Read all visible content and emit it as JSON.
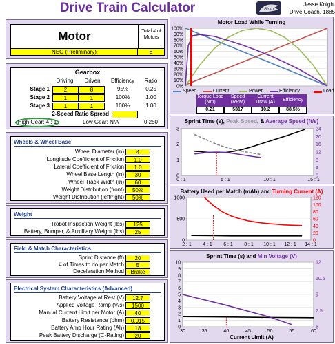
{
  "title": "Drive Train Calculator",
  "author": {
    "name": "Jesse Knight",
    "role": "Drive Coach, 1885"
  },
  "logo": {
    "icon": "team-logo-icon",
    "text": "Bluto"
  },
  "motor": {
    "heading": "Motor",
    "total_label": "Total # of Motors",
    "type": "NEO (Preliminary)",
    "count": "8"
  },
  "gearbox": {
    "heading": "Gearbox",
    "col_driving": "Driving",
    "col_driven": "Driven",
    "col_efficiency": "Efficiency",
    "col_ratio": "Ratio",
    "stages": [
      {
        "label": "Stage 1",
        "driving": "2",
        "driven": "8",
        "efficiency": "95%",
        "ratio": "0.25"
      },
      {
        "label": "Stage 2",
        "driving": "1",
        "driven": "1",
        "efficiency": "100%",
        "ratio": "1.00"
      },
      {
        "label": "Stage 3",
        "driving": "1",
        "driven": "1",
        "efficiency": "100%",
        "ratio": "1.00"
      }
    ],
    "spread_label": "2-Speed Ratio Spread",
    "high_gear": "High Gear:  4 : 1",
    "low_gear": "Low Gear:  N/A",
    "overall": "0.250"
  },
  "wheels": {
    "heading": "Wheels & Wheel Base",
    "rows": [
      {
        "label": "Wheel Diameter (in)",
        "value": "4"
      },
      {
        "label": "Longitude Coefficient of Friction",
        "value": "1.0"
      },
      {
        "label": "Lateral Coefficient of Friction",
        "value": "1.0"
      },
      {
        "label": "Wheel Base Length (in)",
        "value": "30"
      },
      {
        "label": "Wheel Track Width (in)",
        "value": "60"
      },
      {
        "label": "Weight Distribution (front)",
        "value": "50%"
      },
      {
        "label": "Weight Distribution (left/right)",
        "value": "50%"
      }
    ]
  },
  "weight": {
    "heading": "Weight",
    "rows": [
      {
        "label": "Robot Inspection Weight (lbs)",
        "value": "125"
      },
      {
        "label": "Battery, Bumper, & Auxilliary Weight (lbs)",
        "value": "25"
      }
    ]
  },
  "field": {
    "heading": "Field & Match Characteristics",
    "rows": [
      {
        "label": "Sprint Distance (ft)",
        "value": "20"
      },
      {
        "label": "# of Times to do per Match",
        "value": "5"
      },
      {
        "label": "Deceleration Method",
        "value": "Brake"
      }
    ]
  },
  "electrical": {
    "heading": "Electrical System Characteristics (Advanced)",
    "rows": [
      {
        "label": "Battery Voltage at Rest (V)",
        "value": "12.7"
      },
      {
        "label": "Applied Voltage Ramp (V/s)",
        "value": "1500"
      },
      {
        "label": "Manual Current Limit per Motor (A)",
        "value": "40"
      },
      {
        "label": "Battery Resistance (ohm)",
        "value": "0.015"
      },
      {
        "label": "Battery Amp Hour Rating (Ah)",
        "value": "18"
      },
      {
        "label": "Peak Battery Discharge (C-Rating)",
        "value": "20"
      }
    ]
  },
  "motor_load_table": {
    "headers": [
      "Torque Load (Nm)",
      "Speed (RPM)",
      "Current Draw (A)",
      "Efficiency"
    ],
    "values": [
      "0.21",
      "5317",
      "10.2",
      "88.5%"
    ]
  },
  "colors": {
    "title": "#6a2e9e",
    "input": "#ffff00",
    "panel": "#e3d9ef",
    "red": "#ff0000",
    "purple": "#7030a0"
  },
  "chart_data": [
    {
      "type": "line",
      "title": "Motor Load While Turning",
      "xlim": [
        0,
        1
      ],
      "ylim": [
        0,
        100
      ],
      "yticks": [
        "0%",
        "10%",
        "20%",
        "30%",
        "40%",
        "50%",
        "60%",
        "70%",
        "80%",
        "90%",
        "100%"
      ],
      "legend": [
        "Speed",
        "Current",
        "Power",
        "Efficiency",
        "Load"
      ],
      "series": [
        {
          "name": "Speed",
          "color": "#4f81bd",
          "x": [
            0,
            1
          ],
          "y": [
            100,
            0
          ]
        },
        {
          "name": "Current",
          "color": "#c0504d",
          "x": [
            0,
            1
          ],
          "y": [
            2,
            100
          ]
        },
        {
          "name": "Power",
          "color": "#9bbb59",
          "x": [
            0,
            0.1,
            0.2,
            0.3,
            0.4,
            0.5,
            0.6,
            0.7,
            0.8,
            0.9,
            1
          ],
          "y": [
            0,
            36,
            64,
            84,
            96,
            100,
            96,
            84,
            64,
            36,
            0
          ]
        },
        {
          "name": "Efficiency",
          "color": "#7030a0",
          "x": [
            0,
            0.02,
            0.05,
            0.1,
            0.2,
            0.3,
            0.4,
            0.5,
            0.6,
            0.7,
            0.8,
            0.9,
            1
          ],
          "y": [
            0,
            70,
            87,
            89,
            86,
            79,
            71,
            62,
            52,
            41,
            29,
            15,
            0
          ]
        },
        {
          "name": "Load",
          "color": "#ff0000",
          "x": [
            0.04,
            0.04
          ],
          "y": [
            0,
            100
          ]
        }
      ]
    },
    {
      "type": "line",
      "title_parts": [
        "Sprint Time (s), ",
        "Peak Speed",
        ", & ",
        "Average Speed (ft/s)"
      ],
      "xticks": [
        "0 : 1",
        "5 : 1",
        "10 : 1",
        "15 : 1"
      ],
      "xlim": [
        0,
        15
      ],
      "ylim_left": [
        0,
        3
      ],
      "ylim_right": [
        0,
        24
      ],
      "yticks_left": [
        "0",
        "1",
        "2",
        "3"
      ],
      "yticks_right": [
        "0",
        "4",
        "8",
        "12",
        "16",
        "20",
        "24"
      ],
      "series": [
        {
          "name": "Sprint Time",
          "color": "#000000",
          "axis": "left",
          "x": [
            1.5,
            3,
            4,
            5,
            6,
            7,
            8,
            9,
            10,
            11,
            12,
            13,
            14
          ],
          "y": [
            1.55,
            1.48,
            1.45,
            1.47,
            1.55,
            1.68,
            1.84,
            2.02,
            2.2,
            2.38,
            2.56,
            2.75,
            2.95
          ]
        },
        {
          "name": "Peak Speed",
          "color": "#888888",
          "dash": true,
          "axis": "right",
          "x": [
            1.5,
            3,
            4,
            5,
            6,
            7,
            8,
            9
          ],
          "y": [
            21,
            18,
            16,
            14.5,
            13.3,
            12.3,
            11.5,
            10.8
          ]
        },
        {
          "name": "Average Speed",
          "color": "#7030a0",
          "axis": "right",
          "x": [
            1.5,
            3,
            4,
            5,
            6,
            7,
            8,
            9
          ],
          "y": [
            11,
            11.8,
            12,
            11.8,
            11.2,
            10.5,
            9.8,
            9.2
          ]
        }
      ]
    },
    {
      "type": "line",
      "title_parts": [
        "Battery Used per Match (mAh) and ",
        "Turning Current (A)"
      ],
      "xticks": [
        "2 : 1",
        "4 : 1",
        "6 : 1",
        "8 : 1",
        "10 : 1",
        "12 : 1",
        "14 : 1"
      ],
      "xlim": [
        1,
        15
      ],
      "ylim_left": [
        0,
        1000
      ],
      "ylim_right": [
        0,
        120
      ],
      "yticks_left": [
        "0",
        "500",
        "1000"
      ],
      "yticks_right": [
        "0",
        "20",
        "40",
        "60",
        "80",
        "100",
        "120"
      ],
      "series": [
        {
          "name": "Battery Used",
          "color": "#000000",
          "axis": "left",
          "x": [
            1.5,
            4,
            6,
            8,
            10,
            12,
            14
          ],
          "y": [
            110,
            105,
            100,
            100,
            100,
            100,
            100
          ]
        },
        {
          "name": "Turning Current",
          "color": "#ff0000",
          "axis": "right",
          "x": [
            3,
            4,
            5,
            6,
            7,
            8,
            9,
            10,
            11,
            12,
            13,
            14
          ],
          "y": [
            120,
            97,
            80,
            68,
            60,
            54,
            50,
            47,
            45,
            43,
            42,
            41
          ]
        }
      ]
    },
    {
      "type": "line",
      "title_parts": [
        "Sprint Time (s) and ",
        "Min Voltage (V)"
      ],
      "xlabel": "Current Limit (A)",
      "xticks": [
        "30",
        "35",
        "40",
        "45",
        "50",
        "55",
        "60"
      ],
      "xlim": [
        30,
        60
      ],
      "ylim_left": [
        0,
        10
      ],
      "ylim_right": [
        6,
        12
      ],
      "yticks_left": [
        "0",
        "1",
        "2",
        "3",
        "4",
        "5",
        "6",
        "7",
        "8",
        "9",
        "10"
      ],
      "yticks_right": [
        "6",
        "7.5",
        "9",
        "10.5",
        "12"
      ],
      "series": [
        {
          "name": "Sprint Time",
          "color": "#000000",
          "axis": "left",
          "x": [
            30,
            40,
            50,
            60
          ],
          "y": [
            1.58,
            1.52,
            1.45,
            1.4
          ]
        },
        {
          "name": "Min Voltage",
          "color": "#7030a0",
          "axis": "right",
          "x": [
            30,
            40,
            50,
            55
          ],
          "y": [
            9,
            8.0,
            6.9,
            6.2
          ]
        }
      ]
    }
  ]
}
